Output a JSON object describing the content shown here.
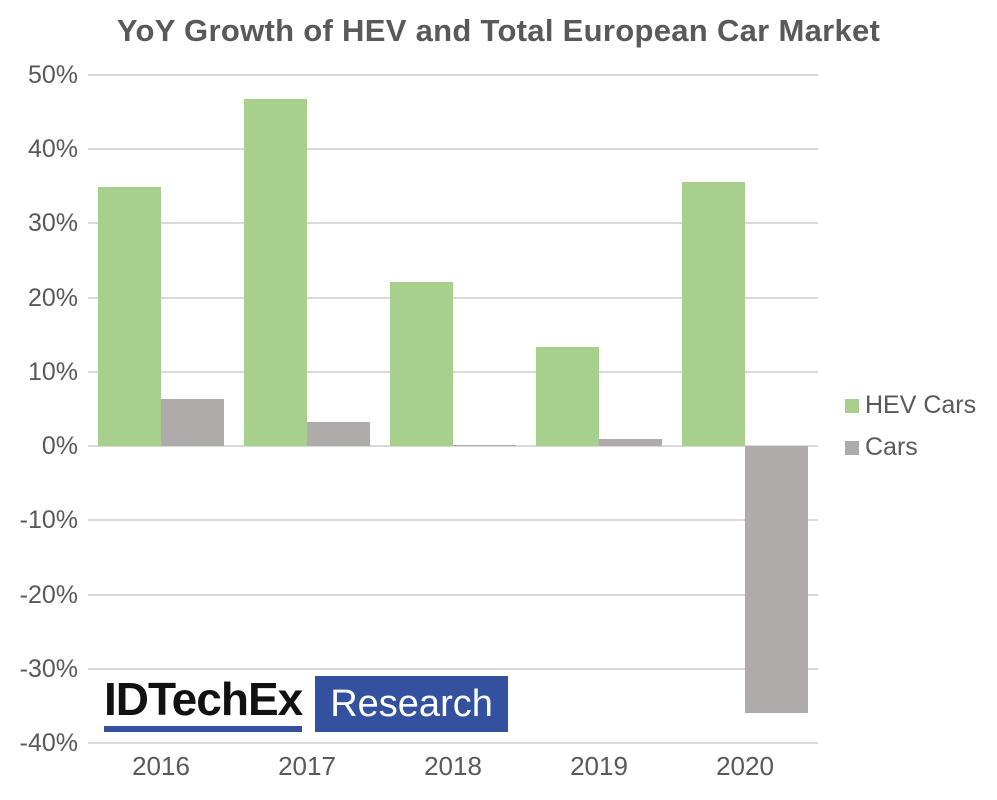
{
  "chart_data": {
    "type": "bar",
    "title": "YoY Growth of HEV and Total European Car Market",
    "categories": [
      "2016",
      "2017",
      "2018",
      "2019",
      "2020"
    ],
    "series": [
      {
        "name": "HEV Cars",
        "color": "#a6d08b",
        "values": [
          34.9,
          46.7,
          22.1,
          13.3,
          35.6
        ]
      },
      {
        "name": "Cars",
        "color": "#afabab",
        "values": [
          6.4,
          3.2,
          0.2,
          1.0,
          -35.9
        ]
      }
    ],
    "xlabel": "",
    "ylabel": "",
    "ylim": [
      -40,
      50
    ],
    "y_axis": {
      "min": -40,
      "max": 50,
      "step": 10,
      "tick_labels": [
        "50%",
        "40%",
        "30%",
        "20%",
        "10%",
        "0%",
        "-10%",
        "-20%",
        "-30%",
        "-40%"
      ],
      "format": "percent"
    },
    "grid": true,
    "legend_position": "right"
  },
  "legend": {
    "items": [
      {
        "label": "HEV Cars",
        "color": "#a6d08b"
      },
      {
        "label": "Cars",
        "color": "#afabab"
      }
    ]
  },
  "logo": {
    "brand": "IDTechEx",
    "label": "Research"
  },
  "colors": {
    "text": "#595959",
    "gridline": "#d9d9d9",
    "hev_green": "#a6d08b",
    "cars_gray": "#afabab",
    "logo_blue": "#33519e",
    "logo_black": "#111111"
  }
}
